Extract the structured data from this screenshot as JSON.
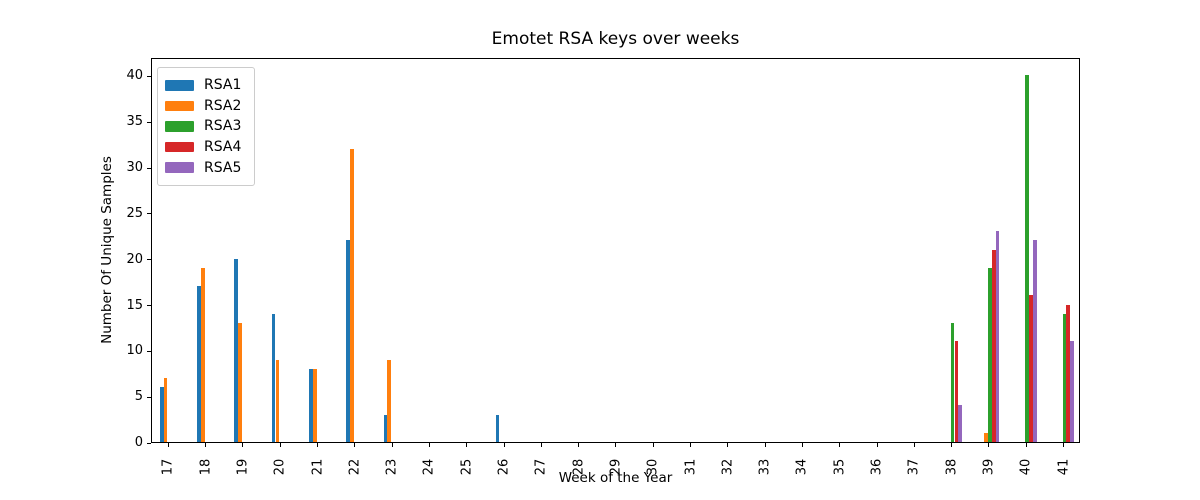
{
  "chart_data": {
    "type": "bar",
    "title": "Emotet RSA keys over weeks",
    "xlabel": "Week of the Year",
    "ylabel": "Number Of Unique Samples",
    "categories": [
      17,
      18,
      19,
      20,
      21,
      22,
      23,
      24,
      25,
      26,
      27,
      28,
      29,
      30,
      31,
      32,
      33,
      34,
      35,
      36,
      37,
      38,
      39,
      40,
      41
    ],
    "series": [
      {
        "name": "RSA1",
        "color": "#1f77b4",
        "values": [
          6,
          17,
          20,
          14,
          8,
          22,
          3,
          0,
          0,
          3,
          0,
          0,
          0,
          0,
          0,
          0,
          0,
          0,
          0,
          0,
          0,
          0,
          0,
          0,
          0
        ]
      },
      {
        "name": "RSA2",
        "color": "#ff7f0e",
        "values": [
          7,
          19,
          13,
          9,
          8,
          32,
          9,
          0,
          0,
          0,
          0,
          0,
          0,
          0,
          0,
          0,
          0,
          0,
          0,
          0,
          0,
          0,
          1,
          0,
          0
        ]
      },
      {
        "name": "RSA3",
        "color": "#2ca02c",
        "values": [
          0,
          0,
          0,
          0,
          0,
          0,
          0,
          0,
          0,
          0,
          0,
          0,
          0,
          0,
          0,
          0,
          0,
          0,
          0,
          0,
          0,
          13,
          19,
          40,
          14
        ]
      },
      {
        "name": "RSA4",
        "color": "#d62728",
        "values": [
          0,
          0,
          0,
          0,
          0,
          0,
          0,
          0,
          0,
          0,
          0,
          0,
          0,
          0,
          0,
          0,
          0,
          0,
          0,
          0,
          0,
          11,
          21,
          16,
          15
        ]
      },
      {
        "name": "RSA5",
        "color": "#9467bd",
        "values": [
          0,
          0,
          0,
          0,
          0,
          0,
          0,
          0,
          0,
          0,
          0,
          0,
          0,
          0,
          0,
          0,
          0,
          0,
          0,
          0,
          0,
          4,
          23,
          22,
          11
        ]
      }
    ],
    "yticks": [
      0,
      5,
      10,
      15,
      20,
      25,
      30,
      35,
      40
    ],
    "ylim": [
      0,
      42
    ],
    "grid": false,
    "legend_position": "upper left"
  }
}
